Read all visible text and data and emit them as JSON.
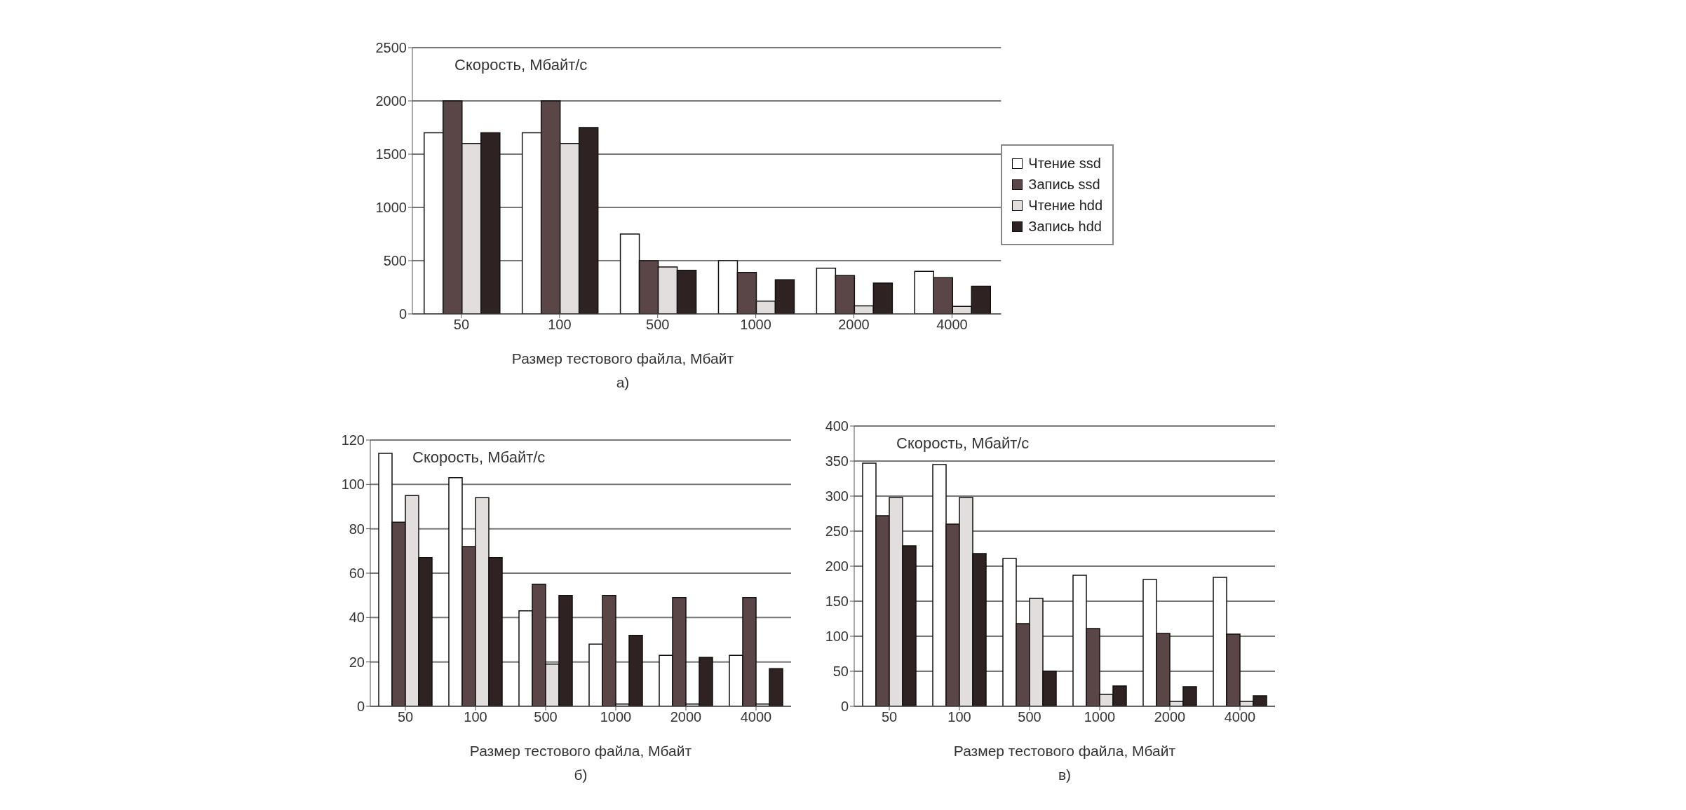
{
  "chart_data": [
    {
      "type": "bar",
      "title": "а)",
      "ylabel": "Скорость, Мбайт/с",
      "xlabel": "Размер тестового файла, Мбайт",
      "categories": [
        "50",
        "100",
        "500",
        "1000",
        "2000",
        "4000"
      ],
      "series": [
        {
          "name": "Чтение ssd",
          "color": "#ffffff",
          "values": [
            1700,
            1700,
            750,
            500,
            430,
            400
          ]
        },
        {
          "name": "Запись ssd",
          "color": "#5a4646",
          "values": [
            2000,
            2000,
            500,
            390,
            360,
            340
          ]
        },
        {
          "name": "Чтение hdd",
          "color": "#e2dede",
          "values": [
            1600,
            1600,
            440,
            120,
            75,
            70
          ]
        },
        {
          "name": "Запись hdd",
          "color": "#2e2222",
          "values": [
            1700,
            1750,
            410,
            320,
            290,
            260
          ]
        }
      ],
      "ylim": [
        0,
        2500
      ],
      "yticks": [
        0,
        500,
        1000,
        1500,
        2000,
        2500
      ],
      "grid": "y",
      "legend": "right"
    },
    {
      "type": "bar",
      "title": "б)",
      "ylabel": "Скорость, Мбайт/с",
      "xlabel": "Размер тестового файла, Мбайт",
      "categories": [
        "50",
        "100",
        "500",
        "1000",
        "2000",
        "4000"
      ],
      "series": [
        {
          "color": "#ffffff",
          "values": [
            114,
            103,
            43,
            28,
            23,
            23
          ]
        },
        {
          "color": "#5a4646",
          "values": [
            83,
            72,
            55,
            50,
            49,
            49
          ]
        },
        {
          "color": "#e2dede",
          "values": [
            95,
            94,
            19,
            1,
            1,
            1
          ]
        },
        {
          "color": "#2e2222",
          "values": [
            67,
            67,
            50,
            32,
            22,
            17
          ]
        }
      ],
      "ylim": [
        0,
        120
      ],
      "yticks": [
        0,
        20,
        40,
        60,
        80,
        100,
        120
      ],
      "grid": "y"
    },
    {
      "type": "bar",
      "title": "в)",
      "ylabel": "Скорость, Мбайт/с",
      "xlabel": "Размер тестового файла, Мбайт",
      "categories": [
        "50",
        "100",
        "500",
        "1000",
        "2000",
        "4000"
      ],
      "series": [
        {
          "color": "#ffffff",
          "values": [
            347,
            345,
            211,
            187,
            181,
            184
          ]
        },
        {
          "color": "#5a4646",
          "values": [
            272,
            260,
            118,
            111,
            104,
            103
          ]
        },
        {
          "color": "#e2dede",
          "values": [
            298,
            298,
            154,
            17,
            7,
            7
          ]
        },
        {
          "color": "#2e2222",
          "values": [
            229,
            218,
            50,
            29,
            28,
            15
          ]
        }
      ],
      "ylim": [
        0,
        400
      ],
      "yticks": [
        0,
        50,
        100,
        150,
        200,
        250,
        300,
        350,
        400
      ],
      "grid": "y"
    }
  ]
}
